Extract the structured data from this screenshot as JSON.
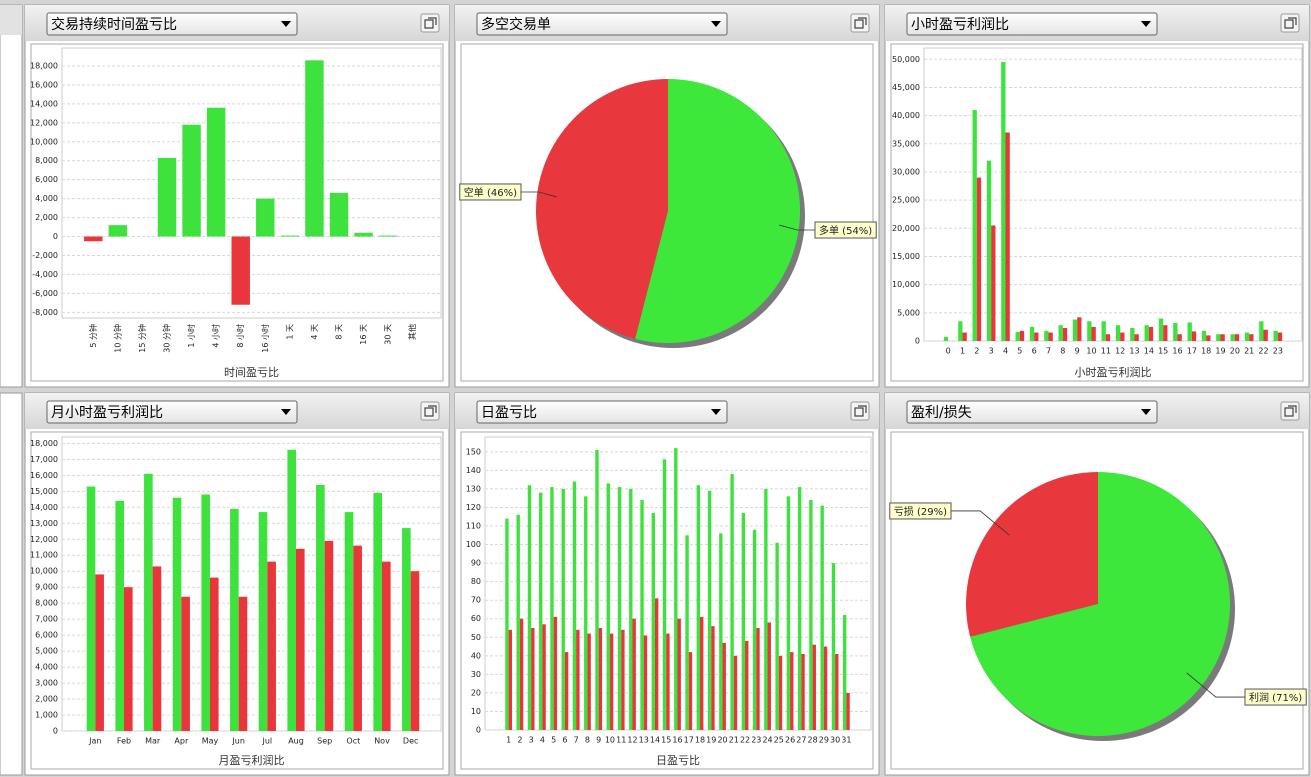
{
  "chart_data": [
    {
      "type": "bar",
      "title": "交易持续时间盈亏比",
      "xlabel": "时间盈亏比",
      "categories": [
        "5 分钟",
        "10 分钟",
        "15 分钟",
        "30 分钟",
        "1 小时",
        "4 小时",
        "8 小时",
        "16 小时",
        "1 天",
        "4 天",
        "8 天",
        "16 天",
        "30 天",
        "其他"
      ],
      "values": [
        -500,
        1200,
        0,
        8300,
        11800,
        13600,
        -7200,
        4000,
        100,
        18600,
        4600,
        400,
        100,
        0
      ],
      "color": "#3de23d",
      "negative_color": "#e8363a",
      "ylim": [
        -8600,
        19900
      ],
      "yticks": [
        {
          "value": -8000,
          "label": "-8,000"
        },
        {
          "value": -6000,
          "label": "-6,000"
        },
        {
          "value": -4000,
          "label": "-4,000"
        },
        {
          "value": -2000,
          "label": "-2,000"
        },
        0,
        {
          "value": 2000,
          "label": "2,000"
        },
        {
          "value": 4000,
          "label": "4,000"
        },
        {
          "value": 6000,
          "label": "6,000"
        },
        {
          "value": 8000,
          "label": "8,000"
        },
        {
          "value": 10000,
          "label": "10,000"
        },
        {
          "value": 12000,
          "label": "12,000"
        },
        {
          "value": 14000,
          "label": "14,000"
        },
        {
          "value": 16000,
          "label": "16,000"
        },
        {
          "value": 18000,
          "label": "18,000"
        }
      ],
      "grid": true,
      "rotate_labels": true
    },
    {
      "type": "pie",
      "title": "多空交易单",
      "values": [
        46,
        54
      ],
      "value_labels": [
        "空单 (46%)",
        "多单 (54%)"
      ],
      "colors": [
        "#e8383d",
        "#3de83a"
      ]
    },
    {
      "type": "bar",
      "title": "小时盈亏利润比",
      "xlabel": "小时盈亏利润比",
      "categories": [
        "0",
        "1",
        "2",
        "3",
        "4",
        "5",
        "6",
        "7",
        "8",
        "9",
        "10",
        "11",
        "12",
        "13",
        "14",
        "15",
        "16",
        "17",
        "18",
        "19",
        "20",
        "21",
        "22",
        "23"
      ],
      "series": [
        {
          "color": "#3de23d",
          "values": [
            700,
            3500,
            41000,
            32000,
            49500,
            1600,
            2500,
            1800,
            2800,
            3800,
            3500,
            3500,
            2800,
            2300,
            2800,
            4000,
            3200,
            3300,
            1800,
            1200,
            1200,
            1500,
            3500,
            1800
          ]
        },
        {
          "color": "#e8363a",
          "values": [
            0,
            1500,
            29000,
            20500,
            37000,
            1800,
            1500,
            1500,
            2300,
            4200,
            2500,
            1200,
            1500,
            1200,
            2500,
            2800,
            1200,
            1700,
            1000,
            1200,
            1200,
            1200,
            2000,
            1500
          ]
        }
      ],
      "ylim": [
        0,
        52000
      ],
      "yticks": [
        0,
        {
          "value": 5000,
          "label": "5,000"
        },
        {
          "value": 10000,
          "label": "10,000"
        },
        {
          "value": 15000,
          "label": "15,000"
        },
        {
          "value": 20000,
          "label": "20,000"
        },
        {
          "value": 25000,
          "label": "25,000"
        },
        {
          "value": 30000,
          "label": "30,000"
        },
        {
          "value": 35000,
          "label": "35,000"
        },
        {
          "value": 40000,
          "label": "40,000"
        },
        {
          "value": 45000,
          "label": "45,000"
        },
        {
          "value": 50000,
          "label": "50,000"
        }
      ],
      "grid": true
    },
    {
      "type": "bar",
      "title": "月小时盈亏利润比",
      "xlabel": "月盈亏利润比",
      "categories": [
        "Jan",
        "Feb",
        "Mar",
        "Apr",
        "May",
        "Jun",
        "Jul",
        "Aug",
        "Sep",
        "Oct",
        "Nov",
        "Dec"
      ],
      "series": [
        {
          "color": "#3de23d",
          "values": [
            15300,
            14400,
            16100,
            14600,
            14800,
            13900,
            13700,
            17600,
            15400,
            13700,
            14900,
            12700
          ]
        },
        {
          "color": "#e8363a",
          "values": [
            9800,
            9000,
            10300,
            8400,
            9600,
            8400,
            10600,
            11400,
            11900,
            11600,
            10600,
            10000
          ]
        }
      ],
      "ylim": [
        0,
        18400
      ],
      "yticks": [
        0,
        {
          "value": 1000,
          "label": "1,000"
        },
        {
          "value": 2000,
          "label": "2,000"
        },
        {
          "value": 3000,
          "label": "3,000"
        },
        {
          "value": 4000,
          "label": "4,000"
        },
        {
          "value": 5000,
          "label": "5,000"
        },
        {
          "value": 6000,
          "label": "6,000"
        },
        {
          "value": 7000,
          "label": "7,000"
        },
        {
          "value": 8000,
          "label": "8,000"
        },
        {
          "value": 9000,
          "label": "9,000"
        },
        {
          "value": 10000,
          "label": "10,000"
        },
        {
          "value": 11000,
          "label": "11,000"
        },
        {
          "value": 12000,
          "label": "12,000"
        },
        {
          "value": 13000,
          "label": "13,000"
        },
        {
          "value": 14000,
          "label": "14,000"
        },
        {
          "value": 15000,
          "label": "15,000"
        },
        {
          "value": 16000,
          "label": "16,000"
        },
        {
          "value": 17000,
          "label": "17,000"
        },
        {
          "value": 18000,
          "label": "18,000"
        }
      ],
      "grid": true
    },
    {
      "type": "bar",
      "title": "日盈亏比",
      "xlabel": "日盈亏比",
      "categories": [
        "1",
        "2",
        "3",
        "4",
        "5",
        "6",
        "7",
        "8",
        "9",
        "10",
        "11",
        "12",
        "13",
        "14",
        "15",
        "16",
        "17",
        "18",
        "19",
        "20",
        "21",
        "22",
        "23",
        "24",
        "25",
        "26",
        "27",
        "28",
        "29",
        "30",
        "31"
      ],
      "series": [
        {
          "color": "#3de23d",
          "values": [
            114,
            116,
            132,
            128,
            131,
            130,
            134,
            126,
            151,
            133,
            131,
            130,
            124,
            117,
            146,
            152,
            105,
            132,
            129,
            106,
            138,
            117,
            108,
            130,
            101,
            126,
            131,
            124,
            121,
            90,
            62
          ]
        },
        {
          "color": "#e8363a",
          "values": [
            54,
            60,
            55,
            57,
            61,
            42,
            54,
            52,
            55,
            52,
            54,
            60,
            51,
            71,
            52,
            60,
            42,
            61,
            56,
            47,
            40,
            48,
            55,
            58,
            40,
            42,
            41,
            46,
            45,
            41,
            20
          ]
        }
      ],
      "ylim": [
        0,
        158
      ],
      "yticks": [
        0,
        10,
        20,
        30,
        40,
        50,
        60,
        70,
        80,
        90,
        100,
        110,
        120,
        130,
        140,
        150
      ],
      "grid": true
    },
    {
      "type": "pie",
      "title": "盈利/损失",
      "values": [
        29,
        71
      ],
      "value_labels": [
        "亏损 (29%)",
        "利润 (71%)"
      ],
      "colors": [
        "#e8383d",
        "#3de83a"
      ]
    }
  ]
}
